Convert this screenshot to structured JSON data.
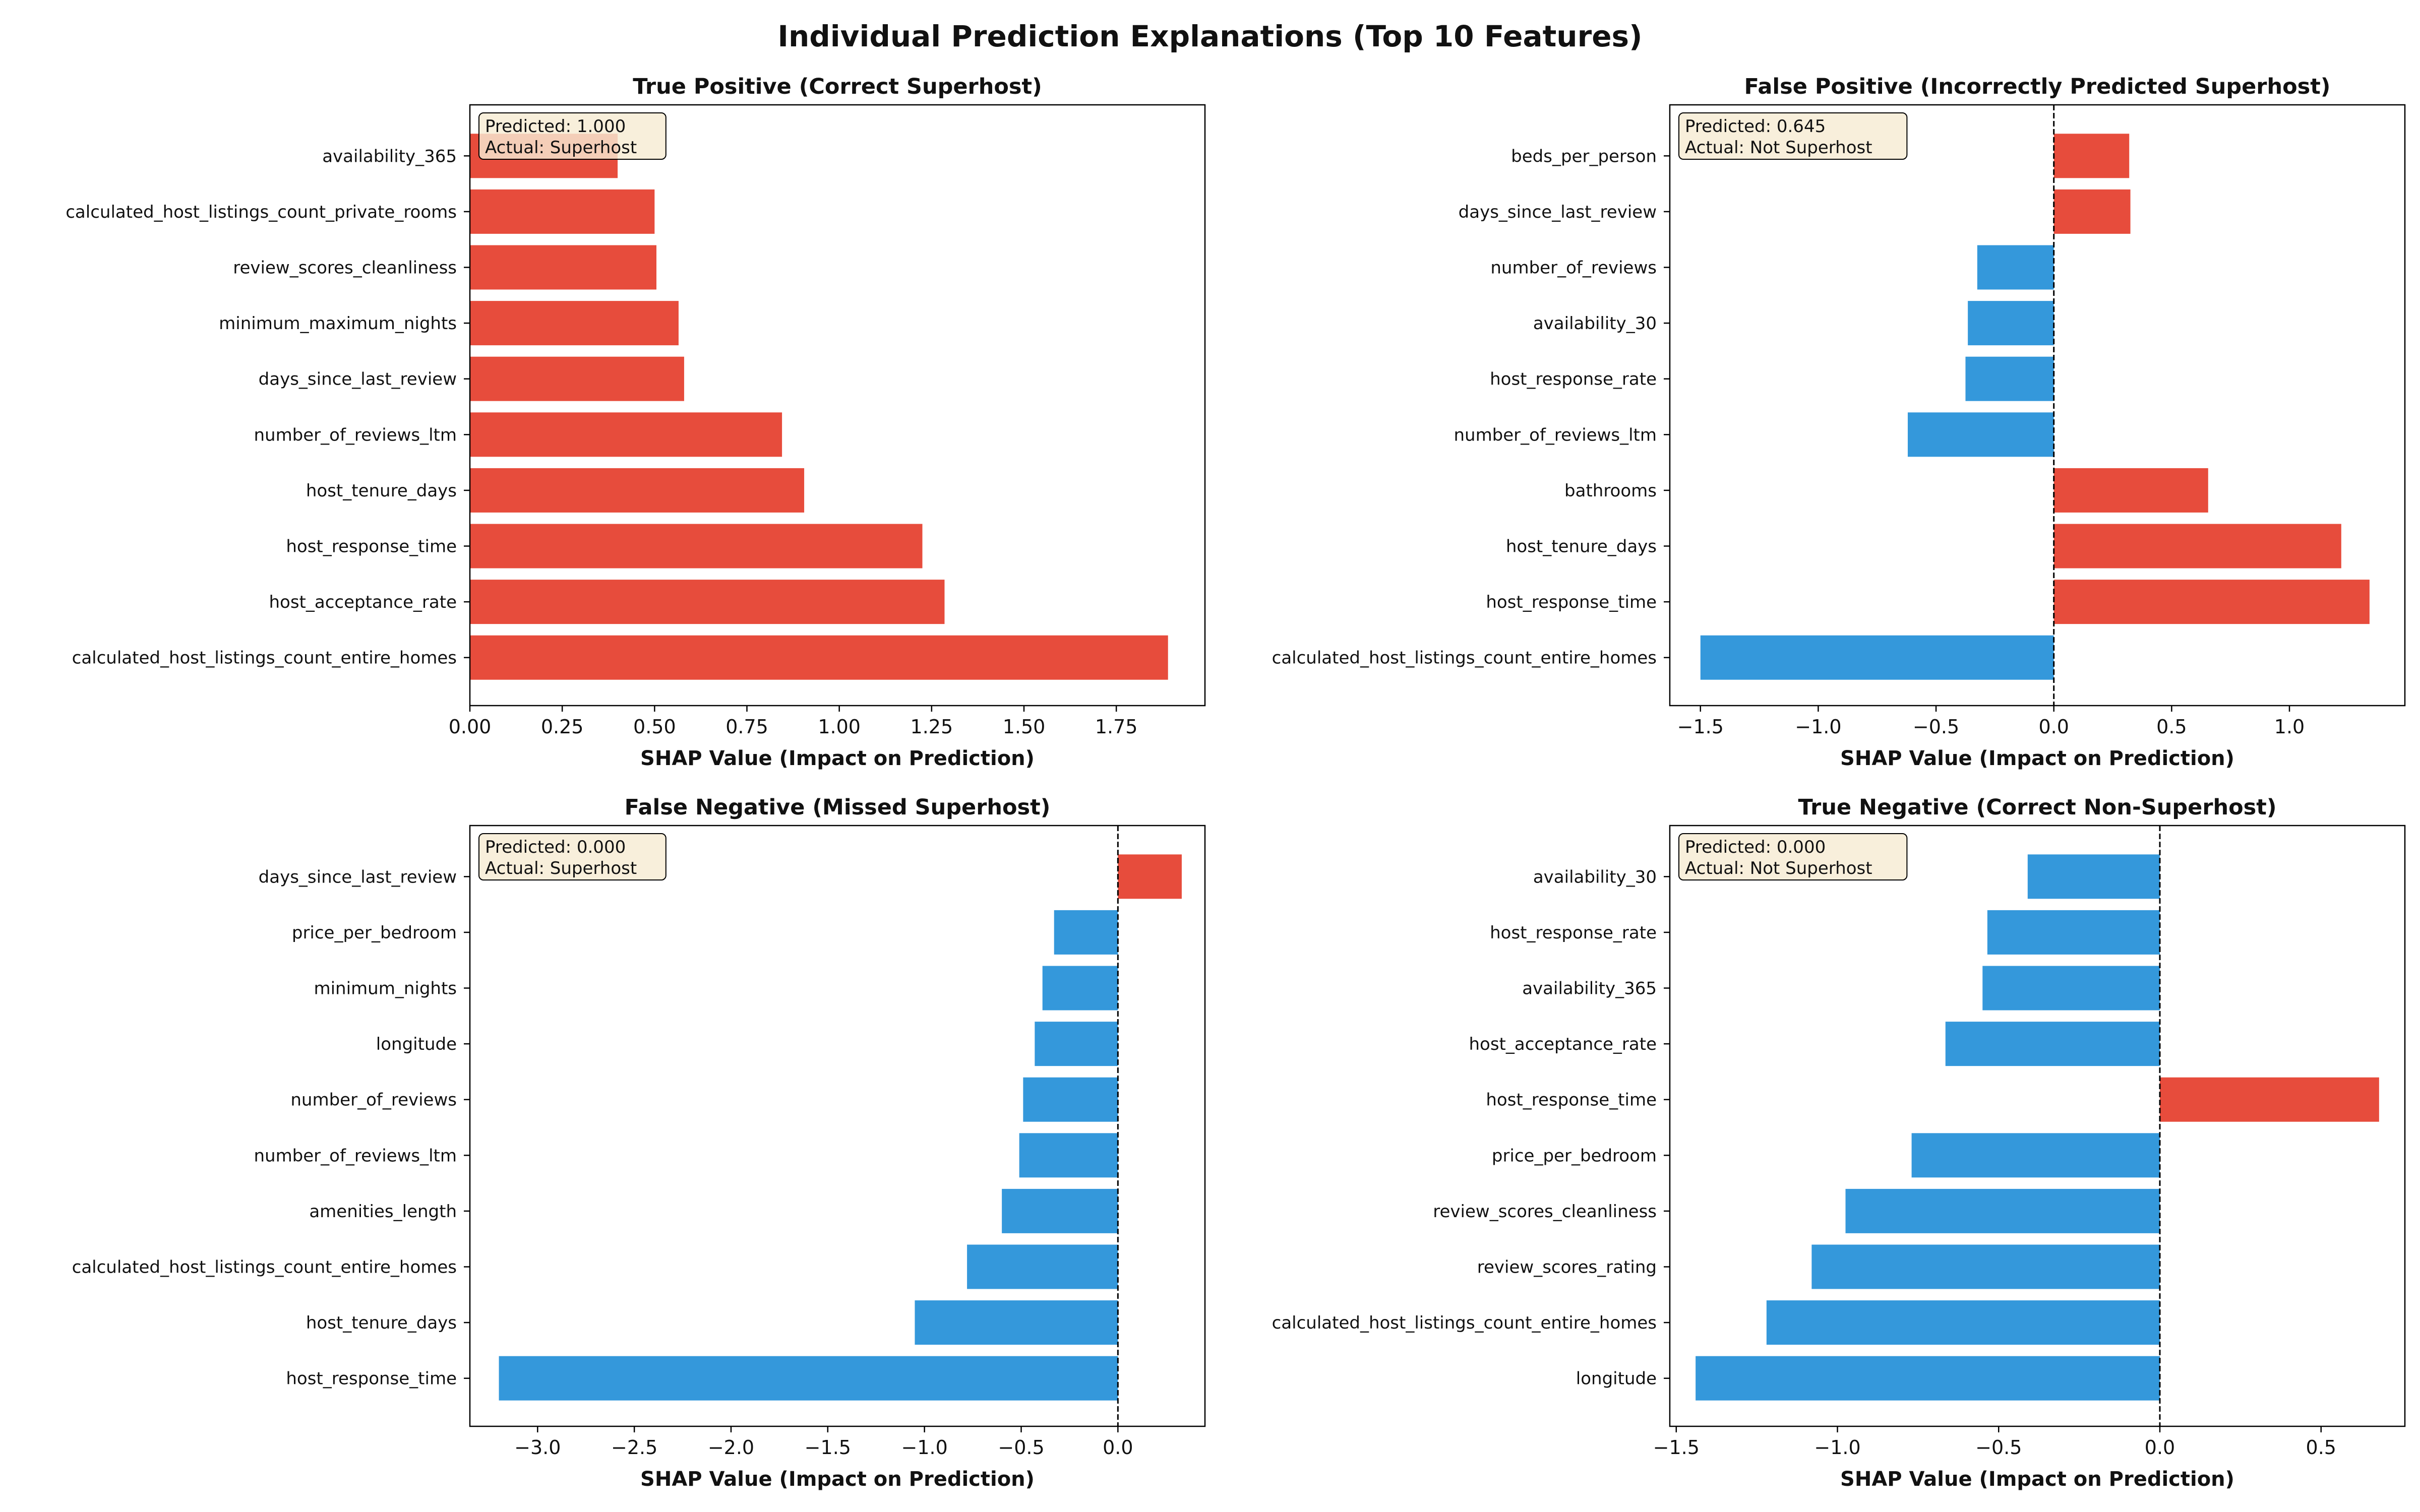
{
  "figure": {
    "title": "Individual Prediction Explanations (Top 10 Features)",
    "positive_color": "#e74c3c",
    "negative_color": "#3498db",
    "box_color": "#f7ebd3"
  },
  "chart_data": [
    {
      "type": "bar",
      "orientation": "horizontal",
      "title": "True Positive (Correct Superhost)",
      "xlabel": "SHAP Value (Impact on Prediction)",
      "xlim": [
        0.0,
        1.99
      ],
      "xticks": [
        0.0,
        0.25,
        0.5,
        0.75,
        1.0,
        1.25,
        1.5,
        1.75
      ],
      "xtick_labels": [
        "0.00",
        "0.25",
        "0.50",
        "0.75",
        "1.00",
        "1.25",
        "1.50",
        "1.75"
      ],
      "zero_line": false,
      "annotation": [
        "Predicted: 1.000",
        "Actual: Superhost"
      ],
      "categories": [
        "availability_365",
        "calculated_host_listings_count_private_rooms",
        "review_scores_cleanliness",
        "minimum_maximum_nights",
        "days_since_last_review",
        "number_of_reviews_ltm",
        "host_tenure_days",
        "host_response_time",
        "host_acceptance_rate",
        "calculated_host_listings_count_entire_homes"
      ],
      "values": [
        0.4,
        0.5,
        0.505,
        0.565,
        0.58,
        0.845,
        0.905,
        1.225,
        1.285,
        1.89
      ]
    },
    {
      "type": "bar",
      "orientation": "horizontal",
      "title": "False Positive (Incorrectly Predicted Superhost)",
      "xlabel": "SHAP Value (Impact on Prediction)",
      "xlim": [
        -1.63,
        1.49
      ],
      "xticks": [
        -1.5,
        -1.0,
        -0.5,
        0.0,
        0.5,
        1.0
      ],
      "xtick_labels": [
        "−1.5",
        "−1.0",
        "−0.5",
        "0.0",
        "0.5",
        "1.0"
      ],
      "zero_line": true,
      "annotation": [
        "Predicted: 0.645",
        "Actual: Not Superhost"
      ],
      "categories": [
        "beds_per_person",
        "days_since_last_review",
        "number_of_reviews",
        "availability_30",
        "host_response_rate",
        "number_of_reviews_ltm",
        "bathrooms",
        "host_tenure_days",
        "host_response_time",
        "calculated_host_listings_count_entire_homes"
      ],
      "values": [
        0.32,
        0.325,
        -0.325,
        -0.365,
        -0.375,
        -0.62,
        0.655,
        1.22,
        1.34,
        -1.5
      ]
    },
    {
      "type": "bar",
      "orientation": "horizontal",
      "title": "False Negative (Missed Superhost)",
      "xlabel": "SHAP Value (Impact on Prediction)",
      "xlim": [
        -3.35,
        0.45
      ],
      "xticks": [
        -3.0,
        -2.5,
        -2.0,
        -1.5,
        -1.0,
        -0.5,
        0.0
      ],
      "xtick_labels": [
        "−3.0",
        "−2.5",
        "−2.0",
        "−1.5",
        "−1.0",
        "−0.5",
        "0.0"
      ],
      "zero_line": true,
      "annotation": [
        "Predicted: 0.000",
        "Actual: Superhost"
      ],
      "categories": [
        "days_since_last_review",
        "price_per_bedroom",
        "minimum_nights",
        "longitude",
        "number_of_reviews",
        "number_of_reviews_ltm",
        "amenities_length",
        "calculated_host_listings_count_entire_homes",
        "host_tenure_days",
        "host_response_time"
      ],
      "values": [
        0.33,
        -0.33,
        -0.39,
        -0.43,
        -0.49,
        -0.51,
        -0.6,
        -0.78,
        -1.05,
        -3.2
      ]
    },
    {
      "type": "bar",
      "orientation": "horizontal",
      "title": "True Negative (Correct Non-Superhost)",
      "xlabel": "SHAP Value (Impact on Prediction)",
      "xlim": [
        -1.52,
        0.76
      ],
      "xticks": [
        -1.5,
        -1.0,
        -0.5,
        0.0,
        0.5
      ],
      "xtick_labels": [
        "−1.5",
        "−1.0",
        "−0.5",
        "0.0",
        "0.5"
      ],
      "zero_line": true,
      "annotation": [
        "Predicted: 0.000",
        "Actual: Not Superhost"
      ],
      "categories": [
        "availability_30",
        "host_response_rate",
        "availability_365",
        "host_acceptance_rate",
        "host_response_time",
        "price_per_bedroom",
        "review_scores_cleanliness",
        "review_scores_rating",
        "calculated_host_listings_count_entire_homes",
        "longitude"
      ],
      "values": [
        -0.41,
        -0.535,
        -0.55,
        -0.665,
        0.68,
        -0.77,
        -0.975,
        -1.08,
        -1.22,
        -1.44
      ]
    }
  ]
}
